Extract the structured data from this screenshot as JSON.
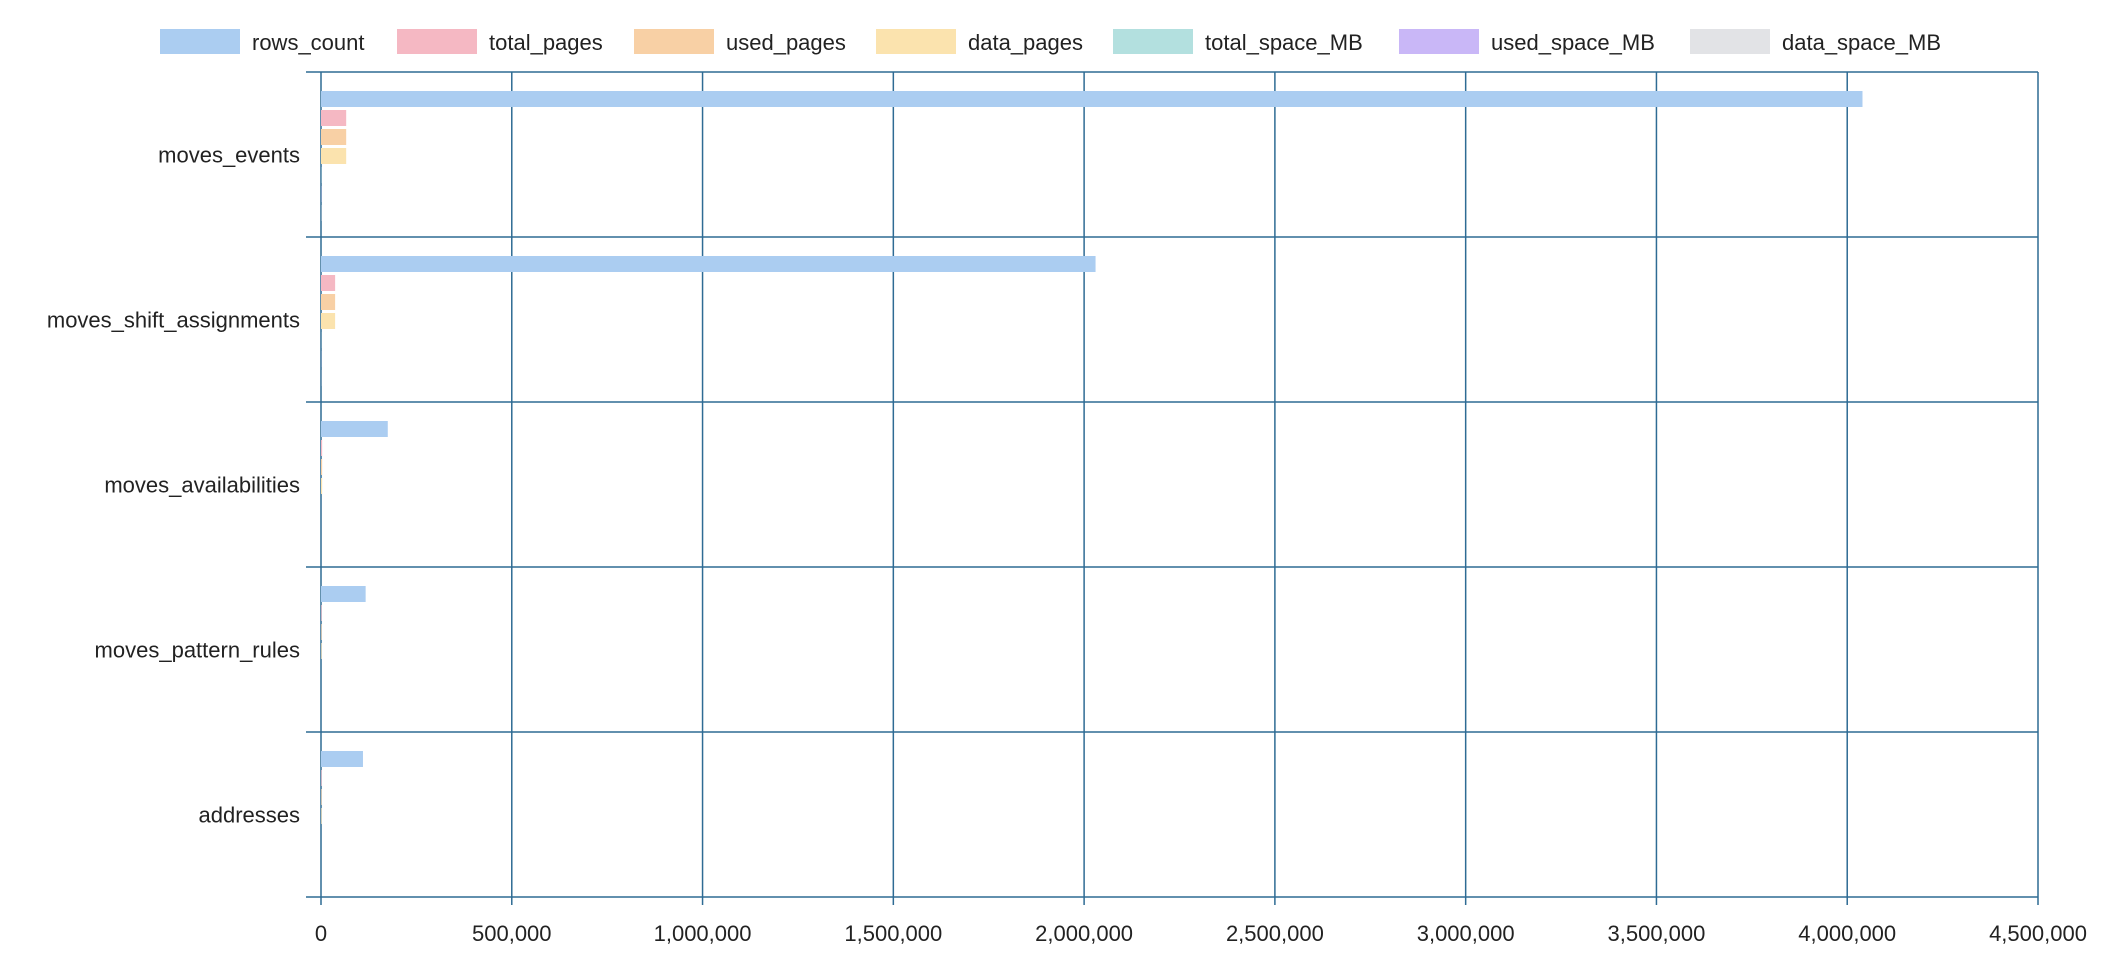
{
  "chart_data": {
    "type": "bar",
    "orientation": "horizontal",
    "categories": [
      "moves_events",
      "moves_shift_assignments",
      "moves_availabilities",
      "moves_pattern_rules",
      "addresses"
    ],
    "series": [
      {
        "name": "rows_count",
        "color": "#abcdf1",
        "values": [
          4040000,
          2030000,
          175000,
          117000,
          110000
        ]
      },
      {
        "name": "total_pages",
        "color": "#f5b8c3",
        "values": [
          66000,
          37000,
          3000,
          1500,
          1500
        ]
      },
      {
        "name": "used_pages",
        "color": "#f8d0a5",
        "values": [
          66000,
          37000,
          3000,
          1500,
          1500
        ]
      },
      {
        "name": "data_pages",
        "color": "#fbe3ae",
        "values": [
          66000,
          37000,
          3000,
          1500,
          1500
        ]
      },
      {
        "name": "total_space_MB",
        "color": "#b3e0df",
        "values": [
          515,
          290,
          23,
          12,
          12
        ]
      },
      {
        "name": "used_space_MB",
        "color": "#c9b7f7",
        "values": [
          515,
          290,
          23,
          12,
          12
        ]
      },
      {
        "name": "data_space_MB",
        "color": "#e2e3e6",
        "values": [
          515,
          290,
          23,
          12,
          12
        ]
      }
    ],
    "xlim": [
      0,
      4500000
    ],
    "x_ticks": [
      0,
      500000,
      1000000,
      1500000,
      2000000,
      2500000,
      3000000,
      3500000,
      4000000,
      4500000
    ],
    "x_tick_labels": [
      "0",
      "500,000",
      "1,000,000",
      "1,500,000",
      "2,000,000",
      "2,500,000",
      "3,000,000",
      "3,500,000",
      "4,000,000",
      "4,500,000"
    ],
    "grid": true,
    "grid_color": "#2e6b94",
    "legend": "top"
  }
}
